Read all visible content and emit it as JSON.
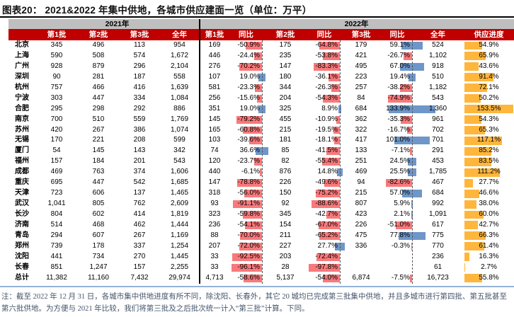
{
  "title": "图表20： 2021&2022 年集中供地，各城市供应建面一览（单位：万平）",
  "footnote": "注：截至 2022 年 12 月 31 日，各城市集中供地进度有所不同，除沈阳、长春外，其它 20 城均已完成第三批集中供地，并且多城市进行第四批、第五批甚至第六批供地。为方便与 2021 年比较，我们将第三批及之后批次统一计入“第三批”计算。下同。",
  "colors": {
    "header_red": "#C00000",
    "band_gray": "#BFBFBF",
    "negative_bar": "#F8797B",
    "positive_bar": "#6E96C8",
    "progress_bar": "#FFB63C",
    "bottom_rule_blue": "#95B3D7"
  },
  "table": {
    "year_headers": [
      "2021年",
      "2022年"
    ],
    "columns_2021": [
      "第1批",
      "第2批",
      "第3批",
      "全年"
    ],
    "columns_2022": [
      "第1批",
      "同比",
      "第2批",
      "同比",
      "第3批",
      "同比",
      "全年",
      "供应进度"
    ],
    "rows": [
      {
        "city": "北京",
        "y2021": [
          "345",
          "496",
          "113",
          "954"
        ],
        "y2022": [
          "169",
          "-50.9%",
          "175",
          "-64.8%",
          "179",
          "59.1%",
          "524",
          "54.9%"
        ]
      },
      {
        "city": "上海",
        "y2021": [
          "590",
          "508",
          "574",
          "1,672"
        ],
        "y2022": [
          "446",
          "-24.4%",
          "235",
          "-53.8%",
          "421",
          "-26.7%",
          "1,102",
          "65.9%"
        ]
      },
      {
        "city": "广州",
        "y2021": [
          "928",
          "879",
          "296",
          "2,104"
        ],
        "y2022": [
          "276",
          "-70.2%",
          "147",
          "-83.3%",
          "495",
          "67.0%",
          "918",
          "43.6%"
        ]
      },
      {
        "city": "深圳",
        "y2021": [
          "90",
          "281",
          "187",
          "558"
        ],
        "y2022": [
          "107",
          "19.0%",
          "180",
          "-36.1%",
          "223",
          "19.4%",
          "510",
          "91.4%"
        ]
      },
      {
        "city": "杭州",
        "y2021": [
          "757",
          "466",
          "416",
          "1,639"
        ],
        "y2022": [
          "581",
          "-23.3%",
          "344",
          "-26.3%",
          "257",
          "-38.2%",
          "1,182",
          "72.1%"
        ]
      },
      {
        "city": "宁波",
        "y2021": [
          "303",
          "447",
          "334",
          "1,084"
        ],
        "y2022": [
          "256",
          "-15.6%",
          "204",
          "-54.3%",
          "84",
          "-74.9%",
          "543",
          "50.2%"
        ]
      },
      {
        "city": "合肥",
        "y2021": [
          "295",
          "298",
          "292",
          "886"
        ],
        "y2022": [
          "351",
          "19.0%",
          "325",
          "8.9%",
          "684",
          "133.9%",
          "1,360",
          "153.5%"
        ]
      },
      {
        "city": "南京",
        "y2021": [
          "700",
          "510",
          "559",
          "1,769"
        ],
        "y2022": [
          "145",
          "-79.2%",
          "455",
          "-10.9%",
          "362",
          "-35.3%",
          "961",
          "54.3%"
        ]
      },
      {
        "city": "苏州",
        "y2021": [
          "420",
          "267",
          "386",
          "1,074"
        ],
        "y2022": [
          "165",
          "-60.8%",
          "215",
          "-19.5%",
          "322",
          "-16.7%",
          "702",
          "65.3%"
        ]
      },
      {
        "city": "无锡",
        "y2021": [
          "170",
          "221",
          "208",
          "599"
        ],
        "y2022": [
          "103",
          "-39.6%",
          "181",
          "-18.1%",
          "417",
          "101.0%",
          "701",
          "117.1%"
        ]
      },
      {
        "city": "厦门",
        "y2021": [
          "54",
          "145",
          "143",
          "342"
        ],
        "y2022": [
          "74",
          "36.6%",
          "85",
          "-41.5%",
          "133",
          "-7.1%",
          "291",
          "85.2%"
        ]
      },
      {
        "city": "福州",
        "y2021": [
          "157",
          "184",
          "201",
          "543"
        ],
        "y2022": [
          "120",
          "-23.7%",
          "82",
          "-55.4%",
          "251",
          "24.5%",
          "453",
          "83.5%"
        ]
      },
      {
        "city": "成都",
        "y2021": [
          "469",
          "763",
          "374",
          "1,606"
        ],
        "y2022": [
          "440",
          "-6.1%",
          "876",
          "14.8%",
          "469",
          "25.5%",
          "1,785",
          "111.2%"
        ]
      },
      {
        "city": "重庆",
        "y2021": [
          "695",
          "447",
          "542",
          "1,685"
        ],
        "y2022": [
          "147",
          "-78.8%",
          "226",
          "-49.6%",
          "94",
          "-82.6%",
          "467",
          "27.7%"
        ]
      },
      {
        "city": "天津",
        "y2021": [
          "723",
          "606",
          "137",
          "1,465"
        ],
        "y2022": [
          "318",
          "-56.0%",
          "150",
          "-75.2%",
          "215",
          "57.0%",
          "684",
          "46.6%"
        ]
      },
      {
        "city": "武汉",
        "y2021": [
          "1,041",
          "805",
          "762",
          "2,609"
        ],
        "y2022": [
          "93",
          "-91.1%",
          "92",
          "-88.6%",
          "807",
          "5.9%",
          "992",
          "38.0%"
        ]
      },
      {
        "city": "长沙",
        "y2021": [
          "804",
          "602",
          "414",
          "1,819"
        ],
        "y2022": [
          "323",
          "-59.8%",
          "345",
          "-42.7%",
          "423",
          "2.1%",
          "1,091",
          "60.0%"
        ]
      },
      {
        "city": "济南",
        "y2021": [
          "514",
          "468",
          "462",
          "1,444"
        ],
        "y2022": [
          "236",
          "-54.1%",
          "154",
          "-67.0%",
          "226",
          "-51.0%",
          "617",
          "42.7%"
        ]
      },
      {
        "city": "青岛",
        "y2021": [
          "294",
          "607",
          "267",
          "1,169"
        ],
        "y2022": [
          "88",
          "-70.0%",
          "211",
          "-65.2%",
          "475",
          "77.8%",
          "775",
          "66.3%"
        ]
      },
      {
        "city": "郑州",
        "y2021": [
          "739",
          "178",
          "337",
          "1,254"
        ],
        "y2022": [
          "207",
          "-72.0%",
          "227",
          "27.7%",
          "336",
          "-0.3%",
          "770",
          "61.4%"
        ]
      },
      {
        "city": "沈阳",
        "y2021": [
          "441",
          "734",
          "270",
          "1,445"
        ],
        "y2022": [
          "33",
          "-92.5%",
          "203",
          "-72.4%",
          "",
          "",
          "236",
          "16.3%"
        ]
      },
      {
        "city": "长春",
        "y2021": [
          "851",
          "1,247",
          "157",
          "2,255"
        ],
        "y2022": [
          "33",
          "-96.1%",
          "28",
          "-97.8%",
          "",
          "",
          "61",
          "2.7%"
        ]
      },
      {
        "city": "总计",
        "y2021": [
          "11,382",
          "11,160",
          "7,432",
          "29,974"
        ],
        "y2022": [
          "4,713",
          "-58.6%",
          "5,137",
          "-54.0%",
          "6,874",
          "-7.5%",
          "16,723",
          "55.8%"
        ]
      }
    ]
  }
}
